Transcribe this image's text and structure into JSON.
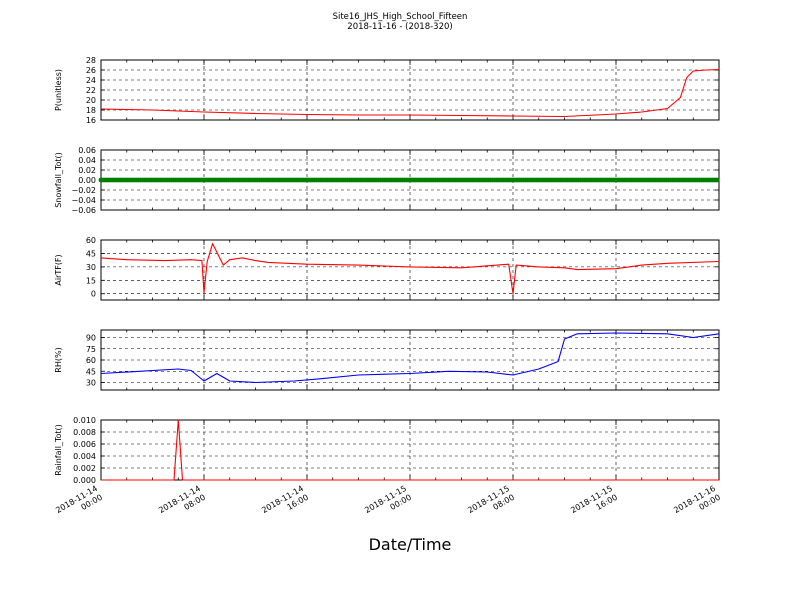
{
  "figure": {
    "title": "Site16_JHS_High_School_Fifteen",
    "subtitle": "2018-11-16 - (2018-320)",
    "xlabel": "Date/Time"
  },
  "x_axis": {
    "start": "2018-11-14 00:00",
    "end": "2018-11-16 00:00",
    "tick_labels": [
      [
        "2018-11-14",
        "00:00"
      ],
      [
        "2018-11-14",
        "08:00"
      ],
      [
        "2018-11-14",
        "16:00"
      ],
      [
        "2018-11-15",
        "00:00"
      ],
      [
        "2018-11-15",
        "08:00"
      ],
      [
        "2018-11-15",
        "16:00"
      ],
      [
        "2018-11-16",
        "00:00"
      ]
    ]
  },
  "chart_data": [
    {
      "type": "line",
      "ylabel": "P(unitless)",
      "color": "#ff0000",
      "ylim": [
        16,
        28
      ],
      "yticks": [
        "16",
        "18",
        "20",
        "22",
        "24",
        "26",
        "28"
      ],
      "grid": true,
      "x": [
        "2018-11-14 00:00",
        "2018-11-14 04:00",
        "2018-11-14 08:00",
        "2018-11-14 12:00",
        "2018-11-14 16:00",
        "2018-11-14 20:00",
        "2018-11-15 00:00",
        "2018-11-15 04:00",
        "2018-11-15 08:00",
        "2018-11-15 12:00",
        "2018-11-15 16:00",
        "2018-11-15 18:00",
        "2018-11-15 20:00",
        "2018-11-15 21:00",
        "2018-11-15 21:30",
        "2018-11-15 22:00",
        "2018-11-15 23:00",
        "2018-11-16 00:00"
      ],
      "y": [
        18.2,
        18.0,
        17.6,
        17.3,
        17.1,
        17.0,
        17.0,
        16.9,
        16.8,
        16.7,
        17.2,
        17.6,
        18.3,
        20.5,
        24.5,
        25.8,
        26.0,
        26.1
      ]
    },
    {
      "type": "scatter",
      "ylabel": "Snowfall_Tot()",
      "color": "#008000",
      "ylim": [
        -0.06,
        0.06
      ],
      "yticks": [
        "−0.06",
        "−0.04",
        "−0.02",
        "0.00",
        "0.02",
        "0.04",
        "0.06"
      ],
      "grid": true,
      "x": [
        "2018-11-14 00:00",
        "2018-11-16 00:00"
      ],
      "y": [
        0.0,
        0.0
      ]
    },
    {
      "type": "line",
      "ylabel": "AirTF(F)",
      "color": "#ff0000",
      "ylim": [
        -7,
        60
      ],
      "yticks": [
        "0",
        "15",
        "30",
        "45",
        "60"
      ],
      "grid": true,
      "x": [
        "2018-11-14 00:00",
        "2018-11-14 02:00",
        "2018-11-14 05:00",
        "2018-11-14 07:00",
        "2018-11-14 07:50",
        "2018-11-14 08:00",
        "2018-11-14 08:15",
        "2018-11-14 08:40",
        "2018-11-14 09:30",
        "2018-11-14 10:00",
        "2018-11-14 11:00",
        "2018-11-14 12:00",
        "2018-11-14 13:00",
        "2018-11-14 16:00",
        "2018-11-14 20:00",
        "2018-11-15 00:00",
        "2018-11-15 04:00",
        "2018-11-15 07:40",
        "2018-11-15 08:00",
        "2018-11-15 08:15",
        "2018-11-15 10:00",
        "2018-11-15 12:00",
        "2018-11-15 13:00",
        "2018-11-15 16:00",
        "2018-11-15 18:00",
        "2018-11-15 20:00",
        "2018-11-16 00:00"
      ],
      "y": [
        40,
        38,
        37,
        38,
        37,
        1,
        36,
        56,
        32,
        38,
        40,
        37,
        35,
        33,
        32,
        30,
        29,
        33,
        0,
        32,
        30,
        29,
        27,
        28,
        32,
        34,
        36
      ]
    },
    {
      "type": "line",
      "ylabel": "RH(%)",
      "color": "#0000ff",
      "ylim": [
        20,
        100
      ],
      "yticks": [
        "30",
        "45",
        "60",
        "75",
        "90"
      ],
      "grid": true,
      "x": [
        "2018-11-14 00:00",
        "2018-11-14 03:00",
        "2018-11-14 06:00",
        "2018-11-14 07:00",
        "2018-11-14 08:00",
        "2018-11-14 09:00",
        "2018-11-14 10:00",
        "2018-11-14 12:00",
        "2018-11-14 15:00",
        "2018-11-14 17:00",
        "2018-11-14 20:00",
        "2018-11-15 00:00",
        "2018-11-15 03:00",
        "2018-11-15 06:00",
        "2018-11-15 08:00",
        "2018-11-15 10:00",
        "2018-11-15 11:30",
        "2018-11-15 12:00",
        "2018-11-15 13:00",
        "2018-11-15 16:00",
        "2018-11-15 20:00",
        "2018-11-15 22:00",
        "2018-11-16 00:00"
      ],
      "y": [
        42,
        45,
        48,
        46,
        32,
        42,
        32,
        30,
        32,
        35,
        40,
        42,
        45,
        44,
        40,
        48,
        58,
        88,
        95,
        96,
        95,
        90,
        95
      ]
    },
    {
      "type": "line",
      "ylabel": "Rainfall_Tot()",
      "color": "#ff0000",
      "ylim": [
        0,
        0.01
      ],
      "yticks": [
        "0.000",
        "0.002",
        "0.004",
        "0.006",
        "0.008",
        "0.010"
      ],
      "grid": true,
      "x": [
        "2018-11-14 00:00",
        "2018-11-14 05:40",
        "2018-11-14 06:00",
        "2018-11-14 06:20",
        "2018-11-16 00:00"
      ],
      "y": [
        0.0,
        0.0,
        0.01,
        0.0,
        0.0
      ]
    }
  ]
}
